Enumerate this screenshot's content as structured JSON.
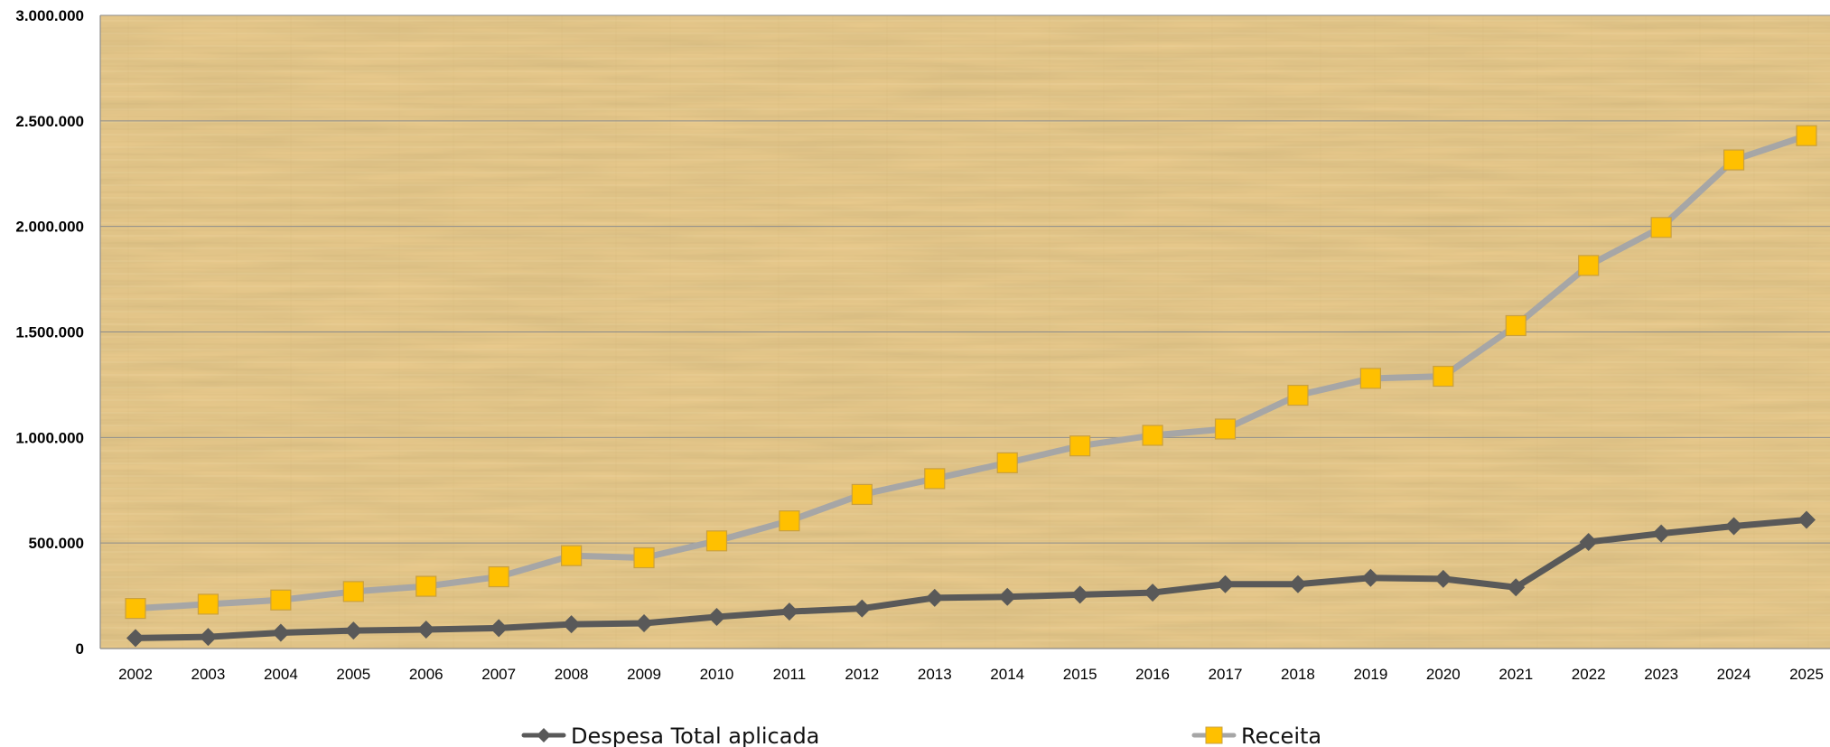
{
  "chart_data": {
    "type": "line",
    "title": "",
    "xlabel": "",
    "ylabel": "",
    "categories": [
      "2002",
      "2003",
      "2004",
      "2005",
      "2006",
      "2007",
      "2008",
      "2009",
      "2010",
      "2011",
      "2012",
      "2013",
      "2014",
      "2015",
      "2016",
      "2017",
      "2018",
      "2019",
      "2020",
      "2021",
      "2022",
      "2023",
      "2024",
      "2025"
    ],
    "ylim": [
      0,
      3000000
    ],
    "y_ticks": [
      0,
      500000,
      1000000,
      1500000,
      2000000,
      2500000,
      3000000
    ],
    "y_tick_labels": [
      "0",
      "500.000",
      "1.000.000",
      "1.500.000",
      "2.000.000",
      "2.500.000",
      "3.000.000"
    ],
    "grid": true,
    "legend_position": "bottom",
    "background": "parchment texture",
    "series": [
      {
        "name": "Despesa Total aplicada",
        "color": "#595959",
        "marker": "diamond",
        "values": [
          50000,
          55000,
          75000,
          85000,
          90000,
          97000,
          115000,
          120000,
          150000,
          175000,
          190000,
          240000,
          245000,
          255000,
          265000,
          305000,
          305000,
          335000,
          330000,
          290000,
          505000,
          545000,
          580000,
          610000
        ]
      },
      {
        "name": "Receita",
        "color": "#a6a6a6",
        "marker_fill": "#ffc000",
        "marker": "square",
        "values": [
          190000,
          210000,
          230000,
          270000,
          295000,
          340000,
          440000,
          430000,
          510000,
          605000,
          730000,
          805000,
          880000,
          960000,
          1010000,
          1040000,
          1200000,
          1280000,
          1290000,
          1530000,
          1815000,
          1995000,
          2315000,
          2430000
        ]
      }
    ]
  }
}
